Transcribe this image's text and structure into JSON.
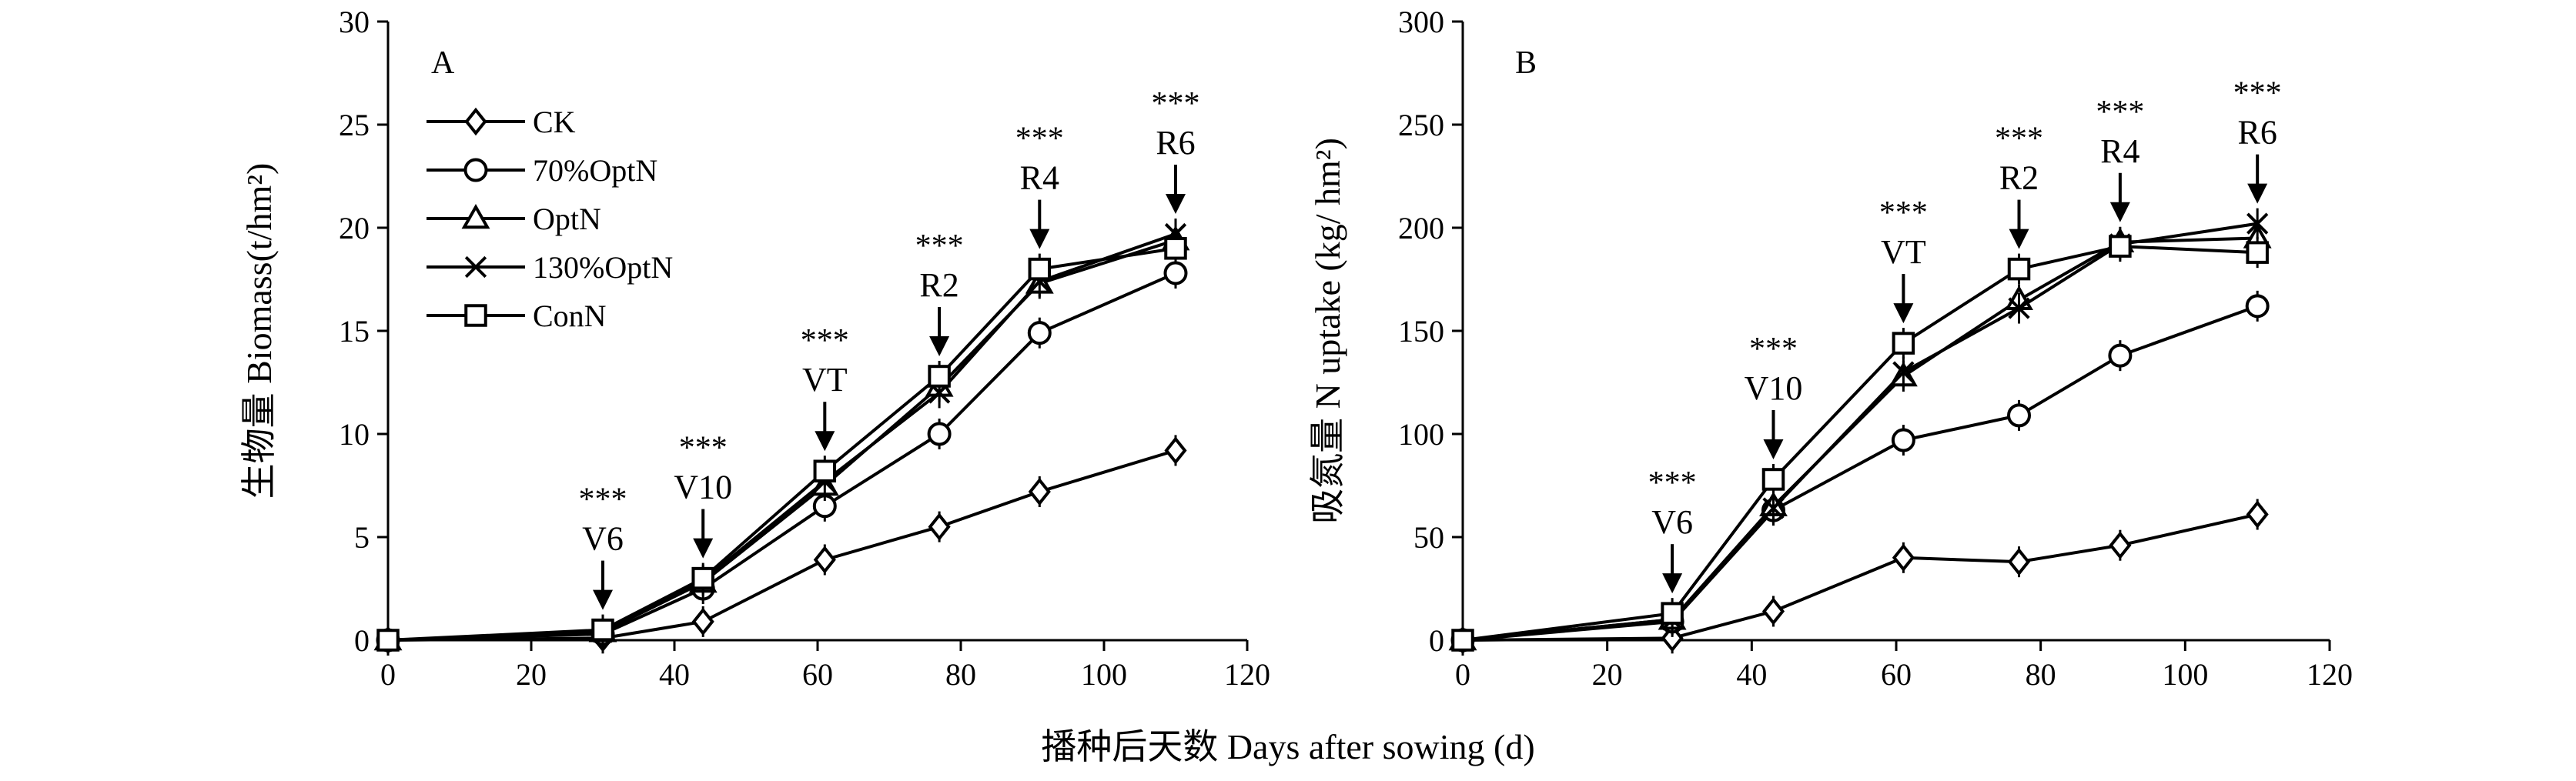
{
  "chart_data": [
    {
      "type": "line",
      "panel": "A",
      "ylabel": "生物量 Biomass(t/hm²)",
      "xlim": [
        0,
        120
      ],
      "ylim": [
        0,
        30
      ],
      "xticks": [
        0,
        20,
        40,
        60,
        80,
        100,
        120
      ],
      "yticks": [
        0,
        5,
        10,
        15,
        20,
        25,
        30
      ],
      "x": [
        0,
        30,
        44,
        61,
        77,
        91,
        110
      ],
      "series": [
        {
          "name": "CK",
          "marker": "diamond",
          "values": [
            0,
            0.1,
            0.9,
            3.9,
            5.5,
            7.2,
            9.2
          ]
        },
        {
          "name": "70%OptN",
          "marker": "circle",
          "values": [
            0,
            0.3,
            2.5,
            6.5,
            10.0,
            14.9,
            17.8
          ]
        },
        {
          "name": "OptN",
          "marker": "triangle",
          "values": [
            0,
            0.4,
            2.8,
            7.5,
            12.3,
            17.3,
            19.4
          ]
        },
        {
          "name": "130%OptN",
          "marker": "x",
          "values": [
            0,
            0.4,
            2.9,
            7.7,
            12.0,
            17.4,
            19.7
          ]
        },
        {
          "name": "ConN",
          "marker": "square",
          "values": [
            0,
            0.5,
            3.0,
            8.2,
            12.8,
            18.0,
            19.0
          ]
        }
      ],
      "stages": [
        {
          "label": "V6",
          "sig": "***",
          "x": 30,
          "y": 0.5
        },
        {
          "label": "V10",
          "sig": "***",
          "x": 44,
          "y": 3.0
        },
        {
          "label": "VT",
          "sig": "***",
          "x": 61,
          "y": 8.2
        },
        {
          "label": "R2",
          "sig": "***",
          "x": 77,
          "y": 12.8
        },
        {
          "label": "R4",
          "sig": "***",
          "x": 91,
          "y": 18.0
        },
        {
          "label": "R6",
          "sig": "***",
          "x": 110,
          "y": 19.7
        }
      ]
    },
    {
      "type": "line",
      "panel": "B",
      "ylabel": "吸氮量 N uptake (kg/ hm²)",
      "xlim": [
        0,
        120
      ],
      "ylim": [
        0,
        300
      ],
      "xticks": [
        0,
        20,
        40,
        60,
        80,
        100,
        120
      ],
      "yticks": [
        0,
        50,
        100,
        150,
        200,
        250,
        300
      ],
      "x": [
        0,
        29,
        43,
        61,
        77,
        91,
        110
      ],
      "series": [
        {
          "name": "CK",
          "marker": "diamond",
          "values": [
            0,
            1,
            14,
            40,
            38,
            46,
            61
          ]
        },
        {
          "name": "70%OptN",
          "marker": "circle",
          "values": [
            0,
            9,
            63,
            97,
            109,
            138,
            162
          ]
        },
        {
          "name": "OptN",
          "marker": "triangle",
          "values": [
            0,
            10,
            65,
            128,
            165,
            193,
            195
          ]
        },
        {
          "name": "130%OptN",
          "marker": "x",
          "values": [
            0,
            10,
            64,
            130,
            161,
            192,
            202
          ]
        },
        {
          "name": "ConN",
          "marker": "square",
          "values": [
            0,
            13,
            78,
            144,
            180,
            191,
            188
          ]
        }
      ],
      "stages": [
        {
          "label": "V6",
          "sig": "***",
          "x": 29,
          "y": 13
        },
        {
          "label": "V10",
          "sig": "***",
          "x": 43,
          "y": 78
        },
        {
          "label": "VT",
          "sig": "***",
          "x": 61,
          "y": 144
        },
        {
          "label": "R2",
          "sig": "***",
          "x": 77,
          "y": 180
        },
        {
          "label": "R4",
          "sig": "***",
          "x": 91,
          "y": 193
        },
        {
          "label": "R6",
          "sig": "***",
          "x": 110,
          "y": 202
        }
      ]
    }
  ],
  "shared_xlabel": "播种后天数 Days after sowing (d)",
  "colors": {
    "ink": "#000000",
    "background": "#ffffff"
  }
}
